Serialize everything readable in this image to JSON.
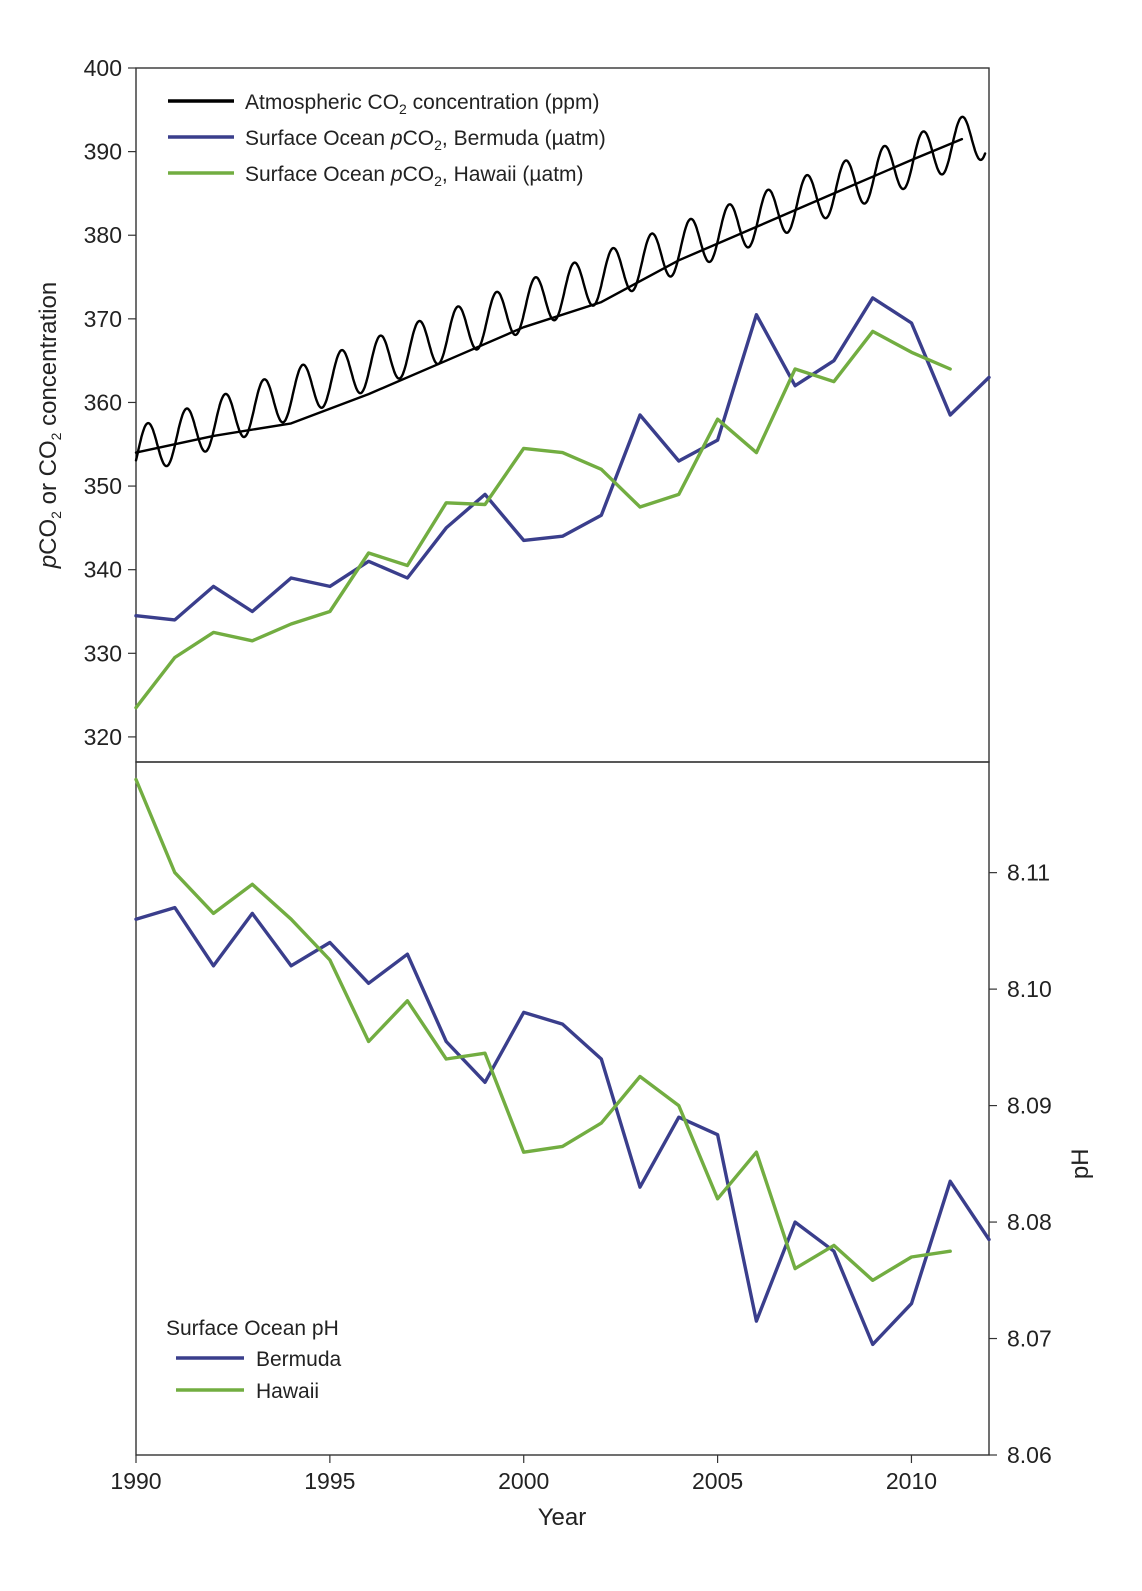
{
  "chart_data": [
    {
      "panel": "top",
      "type": "line",
      "xlim": [
        1990,
        2012
      ],
      "ylim": [
        317,
        400
      ],
      "yticks": [
        320,
        330,
        340,
        350,
        360,
        370,
        380,
        390,
        400
      ],
      "ylabel": {
        "parts": [
          {
            "text": "p",
            "italic": true
          },
          {
            "text": "CO"
          },
          {
            "text": "2",
            "sub": true
          },
          {
            "text": " or CO"
          },
          {
            "text": "2",
            "sub": true
          },
          {
            "text": "  concentration"
          }
        ]
      },
      "legend": {
        "position": "top-left",
        "items": [
          {
            "key": "atmos",
            "parts": [
              {
                "text": "Atmospheric CO"
              },
              {
                "text": "2",
                "sub": true
              },
              {
                "text": " concentration (ppm)"
              }
            ]
          },
          {
            "key": "bermuda",
            "parts": [
              {
                "text": "Surface Ocean "
              },
              {
                "text": "p",
                "italic": true
              },
              {
                "text": "CO"
              },
              {
                "text": "2",
                "sub": true
              },
              {
                "text": ", Bermuda (µatm)"
              }
            ]
          },
          {
            "key": "hawaii",
            "parts": [
              {
                "text": "Surface Ocean "
              },
              {
                "text": "p",
                "italic": true
              },
              {
                "text": "CO"
              },
              {
                "text": "2",
                "sub": true
              },
              {
                "text": ", Hawaii (µatm)"
              }
            ]
          }
        ]
      },
      "series": [
        {
          "key": "atmos_seasonal",
          "name": "Atmospheric CO2 (monthly)",
          "color": "#000000",
          "style": "seasonal",
          "x": [
            1990.0,
            2011.9
          ],
          "trend_start": 354.0,
          "trend_end": 392.2,
          "seasonal_amplitude": 3.0
        },
        {
          "key": "atmos_trend",
          "name": "Atmospheric CO2 (trend)",
          "color": "#000000",
          "x": [
            1990,
            1992,
            1994,
            1996,
            1998,
            2000,
            2002,
            2004,
            2006,
            2008,
            2010,
            2011.3
          ],
          "values": [
            354,
            356,
            357.5,
            361,
            365,
            369,
            372,
            377,
            381,
            385,
            389,
            391.5
          ]
        },
        {
          "key": "bermuda",
          "name": "Bermuda",
          "color": "#3a3e8c",
          "x": [
            1990,
            1991,
            1992,
            1993,
            1994,
            1995,
            1996,
            1997,
            1998,
            1999,
            2000,
            2001,
            2002,
            2003,
            2004,
            2005,
            2006,
            2007,
            2008,
            2009,
            2010,
            2011,
            2012
          ],
          "values": [
            334.5,
            334,
            338,
            335,
            339,
            338,
            341,
            339,
            345,
            349,
            343.5,
            344,
            346.5,
            358.5,
            353,
            355.5,
            370.5,
            362,
            365,
            372.5,
            369.5,
            358.5,
            363
          ]
        },
        {
          "key": "hawaii",
          "name": "Hawaii",
          "color": "#72ad41",
          "x": [
            1990,
            1991,
            1992,
            1993,
            1994,
            1995,
            1996,
            1997,
            1998,
            1999,
            2000,
            2001,
            2002,
            2003,
            2004,
            2005,
            2006,
            2007,
            2008,
            2009,
            2010,
            2011
          ],
          "values": [
            323.5,
            329.5,
            332.5,
            331.5,
            333.5,
            335,
            342,
            340.5,
            348,
            347.8,
            354.5,
            354,
            352,
            347.5,
            349,
            358,
            354,
            364,
            362.5,
            368.5,
            366,
            364
          ]
        }
      ]
    },
    {
      "panel": "bottom",
      "type": "line",
      "xlim": [
        1990,
        2012
      ],
      "ylim": [
        8.06,
        8.1195
      ],
      "xticks": [
        1990,
        1995,
        2000,
        2005,
        2010
      ],
      "yticks": [
        8.06,
        8.07,
        8.08,
        8.09,
        8.1,
        8.11
      ],
      "ytick_labels": [
        "8.06",
        "8.07",
        "8.08",
        "8.09",
        "8.10",
        "8.11"
      ],
      "xlabel": "Year",
      "ylabel": "pH",
      "legend": {
        "position": "bottom-left",
        "title": "Surface Ocean pH",
        "items": [
          {
            "key": "bermuda",
            "label": "Bermuda"
          },
          {
            "key": "hawaii",
            "label": "Hawaii"
          }
        ]
      },
      "series": [
        {
          "key": "bermuda",
          "name": "Bermuda",
          "color": "#3a3e8c",
          "x": [
            1990,
            1991,
            1992,
            1993,
            1994,
            1995,
            1996,
            1997,
            1998,
            1999,
            2000,
            2001,
            2002,
            2003,
            2004,
            2005,
            2006,
            2007,
            2008,
            2009,
            2010,
            2011,
            2012
          ],
          "values": [
            8.106,
            8.107,
            8.102,
            8.1065,
            8.102,
            8.104,
            8.1005,
            8.103,
            8.0955,
            8.092,
            8.098,
            8.097,
            8.094,
            8.083,
            8.089,
            8.0875,
            8.0715,
            8.08,
            8.0775,
            8.0695,
            8.073,
            8.0835,
            8.0785
          ]
        },
        {
          "key": "hawaii",
          "name": "Hawaii",
          "color": "#72ad41",
          "x": [
            1990,
            1991,
            1992,
            1993,
            1994,
            1995,
            1996,
            1997,
            1998,
            1999,
            2000,
            2001,
            2002,
            2003,
            2004,
            2005,
            2006,
            2007,
            2008,
            2009,
            2010,
            2011
          ],
          "values": [
            8.118,
            8.11,
            8.1065,
            8.109,
            8.106,
            8.1025,
            8.0955,
            8.099,
            8.094,
            8.0945,
            8.086,
            8.0865,
            8.0885,
            8.0925,
            8.09,
            8.082,
            8.086,
            8.076,
            8.078,
            8.075,
            8.077,
            8.0775
          ]
        }
      ]
    }
  ]
}
